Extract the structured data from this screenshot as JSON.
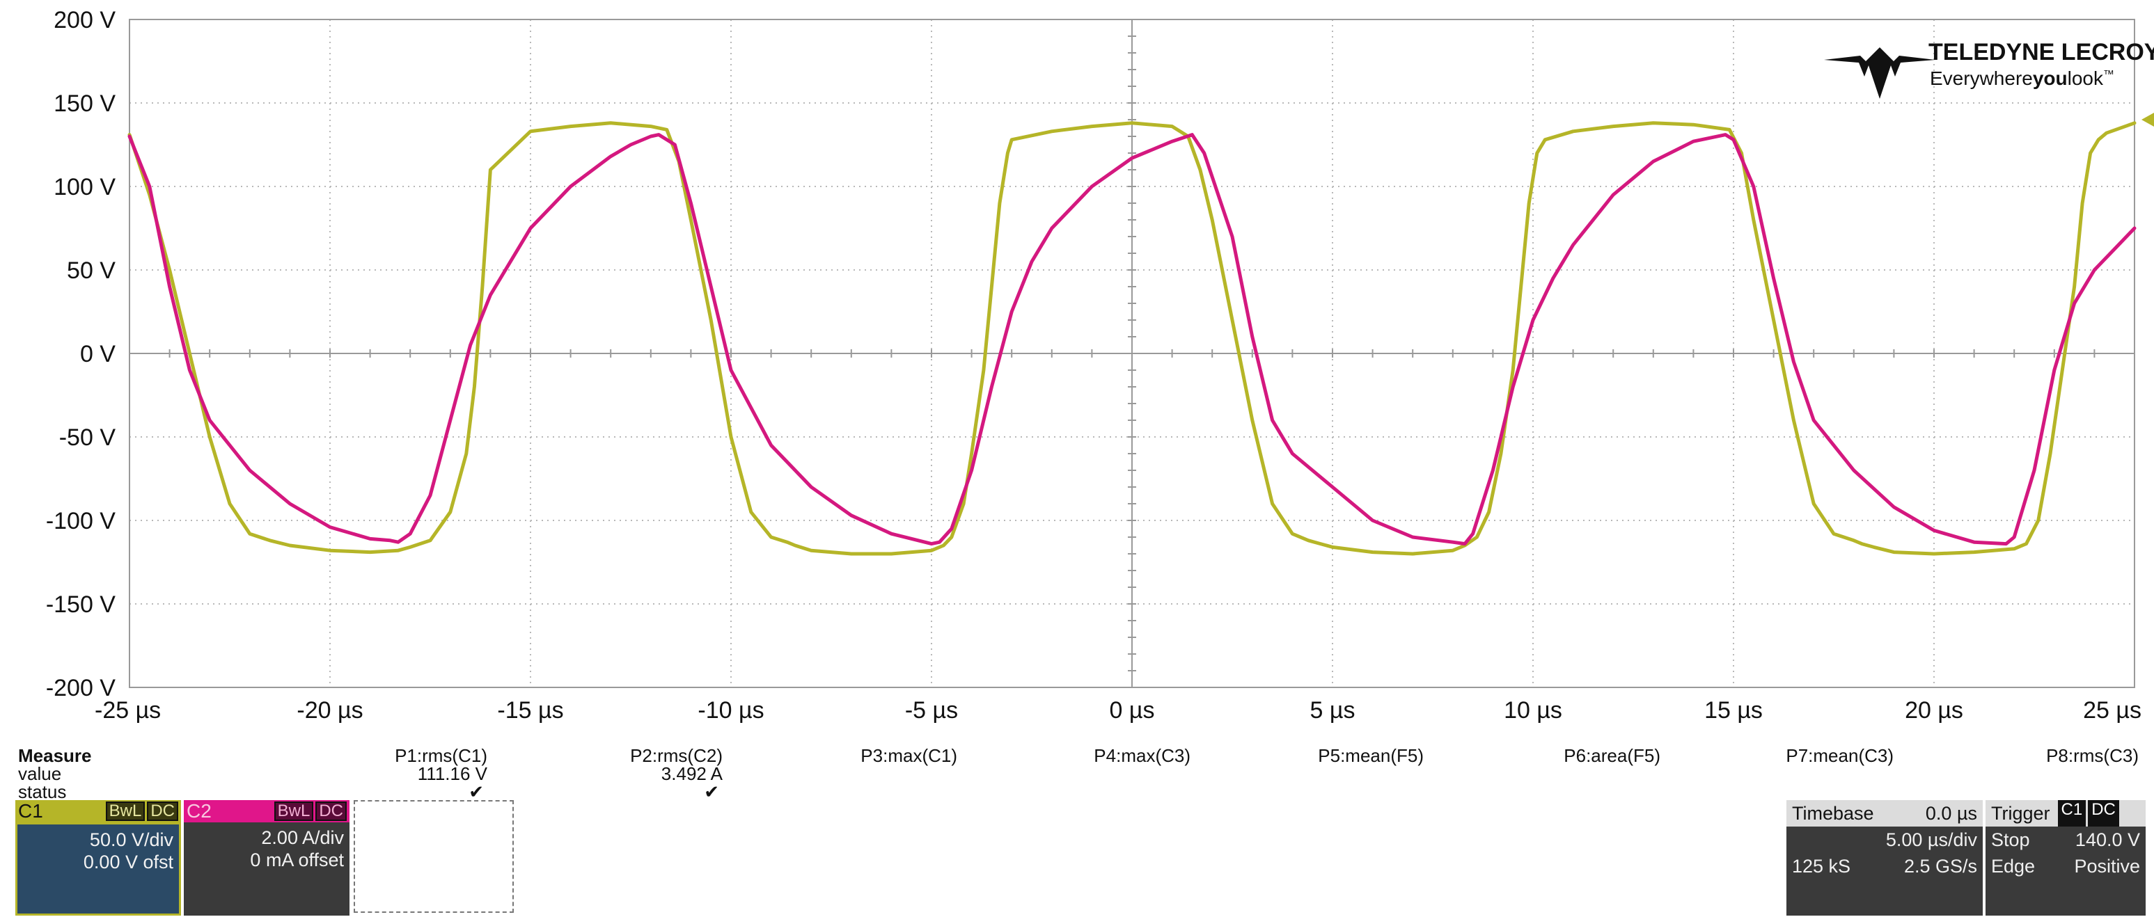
{
  "brand": {
    "name": "TELEDYNE LECROY",
    "tagline_pre": "Everywhere",
    "tagline_bold": "you",
    "tagline_post": "look",
    "tm": "™"
  },
  "chart_data": {
    "type": "line",
    "xlabel": "",
    "ylabel": "",
    "xlim": [
      -25,
      25
    ],
    "ylim": [
      -200,
      200
    ],
    "x_unit": "µs",
    "y_unit": "V",
    "grid": true,
    "x_ticks": [
      -25,
      -20,
      -15,
      -10,
      -5,
      0,
      5,
      10,
      15,
      20,
      25
    ],
    "x_tick_labels": [
      "-25 µs",
      "-20 µs",
      "-15 µs",
      "-10 µs",
      "-5 µs",
      "0 µs",
      "5 µs",
      "10 µs",
      "15 µs",
      "20 µs",
      "25 µs"
    ],
    "y_ticks": [
      200,
      150,
      100,
      50,
      0,
      -50,
      -100,
      -150,
      -200
    ],
    "y_tick_labels": [
      "200 V",
      "150 V",
      "100 V",
      "50 V",
      "0 V",
      "-50 V",
      "-100 V",
      "-150 V",
      "-200 V"
    ],
    "series": [
      {
        "color": "#b5b528",
        "x": [
          -25,
          -24.5,
          -24,
          -23.5,
          -23,
          -22.5,
          -22,
          -21.5,
          -21,
          -20,
          -19,
          -18.3,
          -18,
          -17.5,
          -17,
          -16.6,
          -16.4,
          -16.2,
          -16,
          -15,
          -14,
          -13,
          -12,
          -11.6,
          -11.3,
          -11,
          -10.5,
          -10,
          -9.5,
          -9,
          -8.6,
          -8.4,
          -8,
          -7,
          -6,
          -5,
          -4.7,
          -4.5,
          -4.2,
          -4,
          -3.7,
          -3.5,
          -3.3,
          -3.1,
          -3,
          -2,
          -1,
          0,
          1,
          1.4,
          1.7,
          2,
          2.5,
          3,
          3.5,
          4,
          4.4,
          4.7,
          5,
          6,
          7,
          8,
          8.3,
          8.6,
          8.9,
          9.2,
          9.5,
          9.7,
          9.9,
          10.1,
          10.3,
          11,
          12,
          13,
          14,
          14.9,
          15.2,
          15.5,
          16,
          16.5,
          17,
          17.5,
          18,
          18.2,
          18.5,
          19,
          20,
          21,
          22,
          22.3,
          22.6,
          22.9,
          23.2,
          23.5,
          23.7,
          23.9,
          24.1,
          24.3,
          25
        ],
        "values": [
          131,
          95,
          50,
          0,
          -50,
          -90,
          -108,
          -112,
          -115,
          -118,
          -119,
          -118,
          -116,
          -112,
          -95,
          -60,
          -20,
          40,
          110,
          133,
          136,
          138,
          136,
          134,
          115,
          80,
          20,
          -50,
          -95,
          -110,
          -113,
          -115,
          -118,
          -120,
          -120,
          -118,
          -115,
          -110,
          -90,
          -60,
          -10,
          40,
          90,
          120,
          128,
          133,
          136,
          138,
          136,
          130,
          110,
          80,
          20,
          -40,
          -90,
          -108,
          -112,
          -114,
          -116,
          -119,
          -120,
          -118,
          -115,
          -110,
          -95,
          -60,
          -10,
          40,
          90,
          120,
          128,
          133,
          136,
          138,
          137,
          134,
          120,
          80,
          20,
          -40,
          -90,
          -108,
          -112,
          -114,
          -116,
          -119,
          -120,
          -119,
          -117,
          -114,
          -100,
          -60,
          -10,
          40,
          90,
          120,
          128,
          132,
          138
        ]
      },
      {
        "color": "#d4187f",
        "x": [
          -25,
          -24.5,
          -24,
          -23.5,
          -23,
          -22.5,
          -22,
          -21,
          -20,
          -19,
          -18.5,
          -18.3,
          -18,
          -17.5,
          -17,
          -16.5,
          -16,
          -15,
          -14,
          -13,
          -12.5,
          -12,
          -11.8,
          -11.4,
          -11,
          -10.5,
          -10,
          -9,
          -8,
          -7,
          -6,
          -5,
          -4.8,
          -4.5,
          -4,
          -3.5,
          -3,
          -2.5,
          -2,
          -1,
          0,
          1,
          1.5,
          1.8,
          2.5,
          3,
          3.5,
          4,
          5,
          6,
          7,
          8,
          8.3,
          8.5,
          9,
          9.5,
          10,
          10.5,
          11,
          12,
          13,
          14,
          14.8,
          15,
          15.5,
          16,
          16.5,
          17,
          18,
          19,
          20,
          21,
          21.8,
          22,
          22.5,
          23,
          23.5,
          24,
          25
        ],
        "values": [
          130,
          100,
          40,
          -10,
          -40,
          -55,
          -70,
          -90,
          -104,
          -111,
          -112,
          -113,
          -108,
          -85,
          -40,
          5,
          35,
          75,
          100,
          118,
          125,
          130,
          131,
          125,
          90,
          40,
          -10,
          -55,
          -80,
          -97,
          -108,
          -114,
          -113,
          -105,
          -70,
          -20,
          25,
          55,
          75,
          100,
          117,
          127,
          131,
          120,
          70,
          10,
          -40,
          -60,
          -80,
          -100,
          -110,
          -113,
          -114,
          -108,
          -70,
          -20,
          20,
          45,
          65,
          95,
          115,
          127,
          131,
          128,
          100,
          45,
          -5,
          -40,
          -70,
          -92,
          -106,
          -113,
          -114,
          -110,
          -70,
          -10,
          30,
          50,
          75
        ]
      }
    ]
  },
  "measure": {
    "header": "Measure",
    "row_value": "value",
    "row_status": "status",
    "params": [
      {
        "name": "P1:rms(C1)",
        "value": "111.16 V",
        "status": "✔"
      },
      {
        "name": "P2:rms(C2)",
        "value": "3.492 A",
        "status": "✔"
      },
      {
        "name": "P3:max(C1)",
        "value": "",
        "status": ""
      },
      {
        "name": "P4:max(C3)",
        "value": "",
        "status": ""
      },
      {
        "name": "P5:mean(F5)",
        "value": "",
        "status": ""
      },
      {
        "name": "P6:area(F5)",
        "value": "",
        "status": ""
      },
      {
        "name": "P7:mean(C3)",
        "value": "",
        "status": ""
      },
      {
        "name": "P8:rms(C3)",
        "value": "",
        "status": ""
      }
    ]
  },
  "channels": {
    "c1": {
      "label": "C1",
      "bwl": "BwL",
      "coupling": "DC",
      "scale": "50.0 V/div",
      "offset": "0.00 V ofst",
      "color": "#b5b528"
    },
    "c2": {
      "label": "C2",
      "bwl": "BwL",
      "coupling": "DC",
      "scale": "2.00 A/div",
      "offset": "0 mA offset",
      "color": "#e0168a"
    }
  },
  "timebase": {
    "label": "Timebase",
    "delay": "0.0 µs",
    "per_div": "5.00 µs/div",
    "samples": "125 kS",
    "rate": "2.5 GS/s"
  },
  "trigger": {
    "label": "Trigger",
    "ch_badge": "C1",
    "coupling_badge": "DC",
    "mode": "Stop",
    "level": "140.0 V",
    "type": "Edge",
    "slope": "Positive"
  }
}
